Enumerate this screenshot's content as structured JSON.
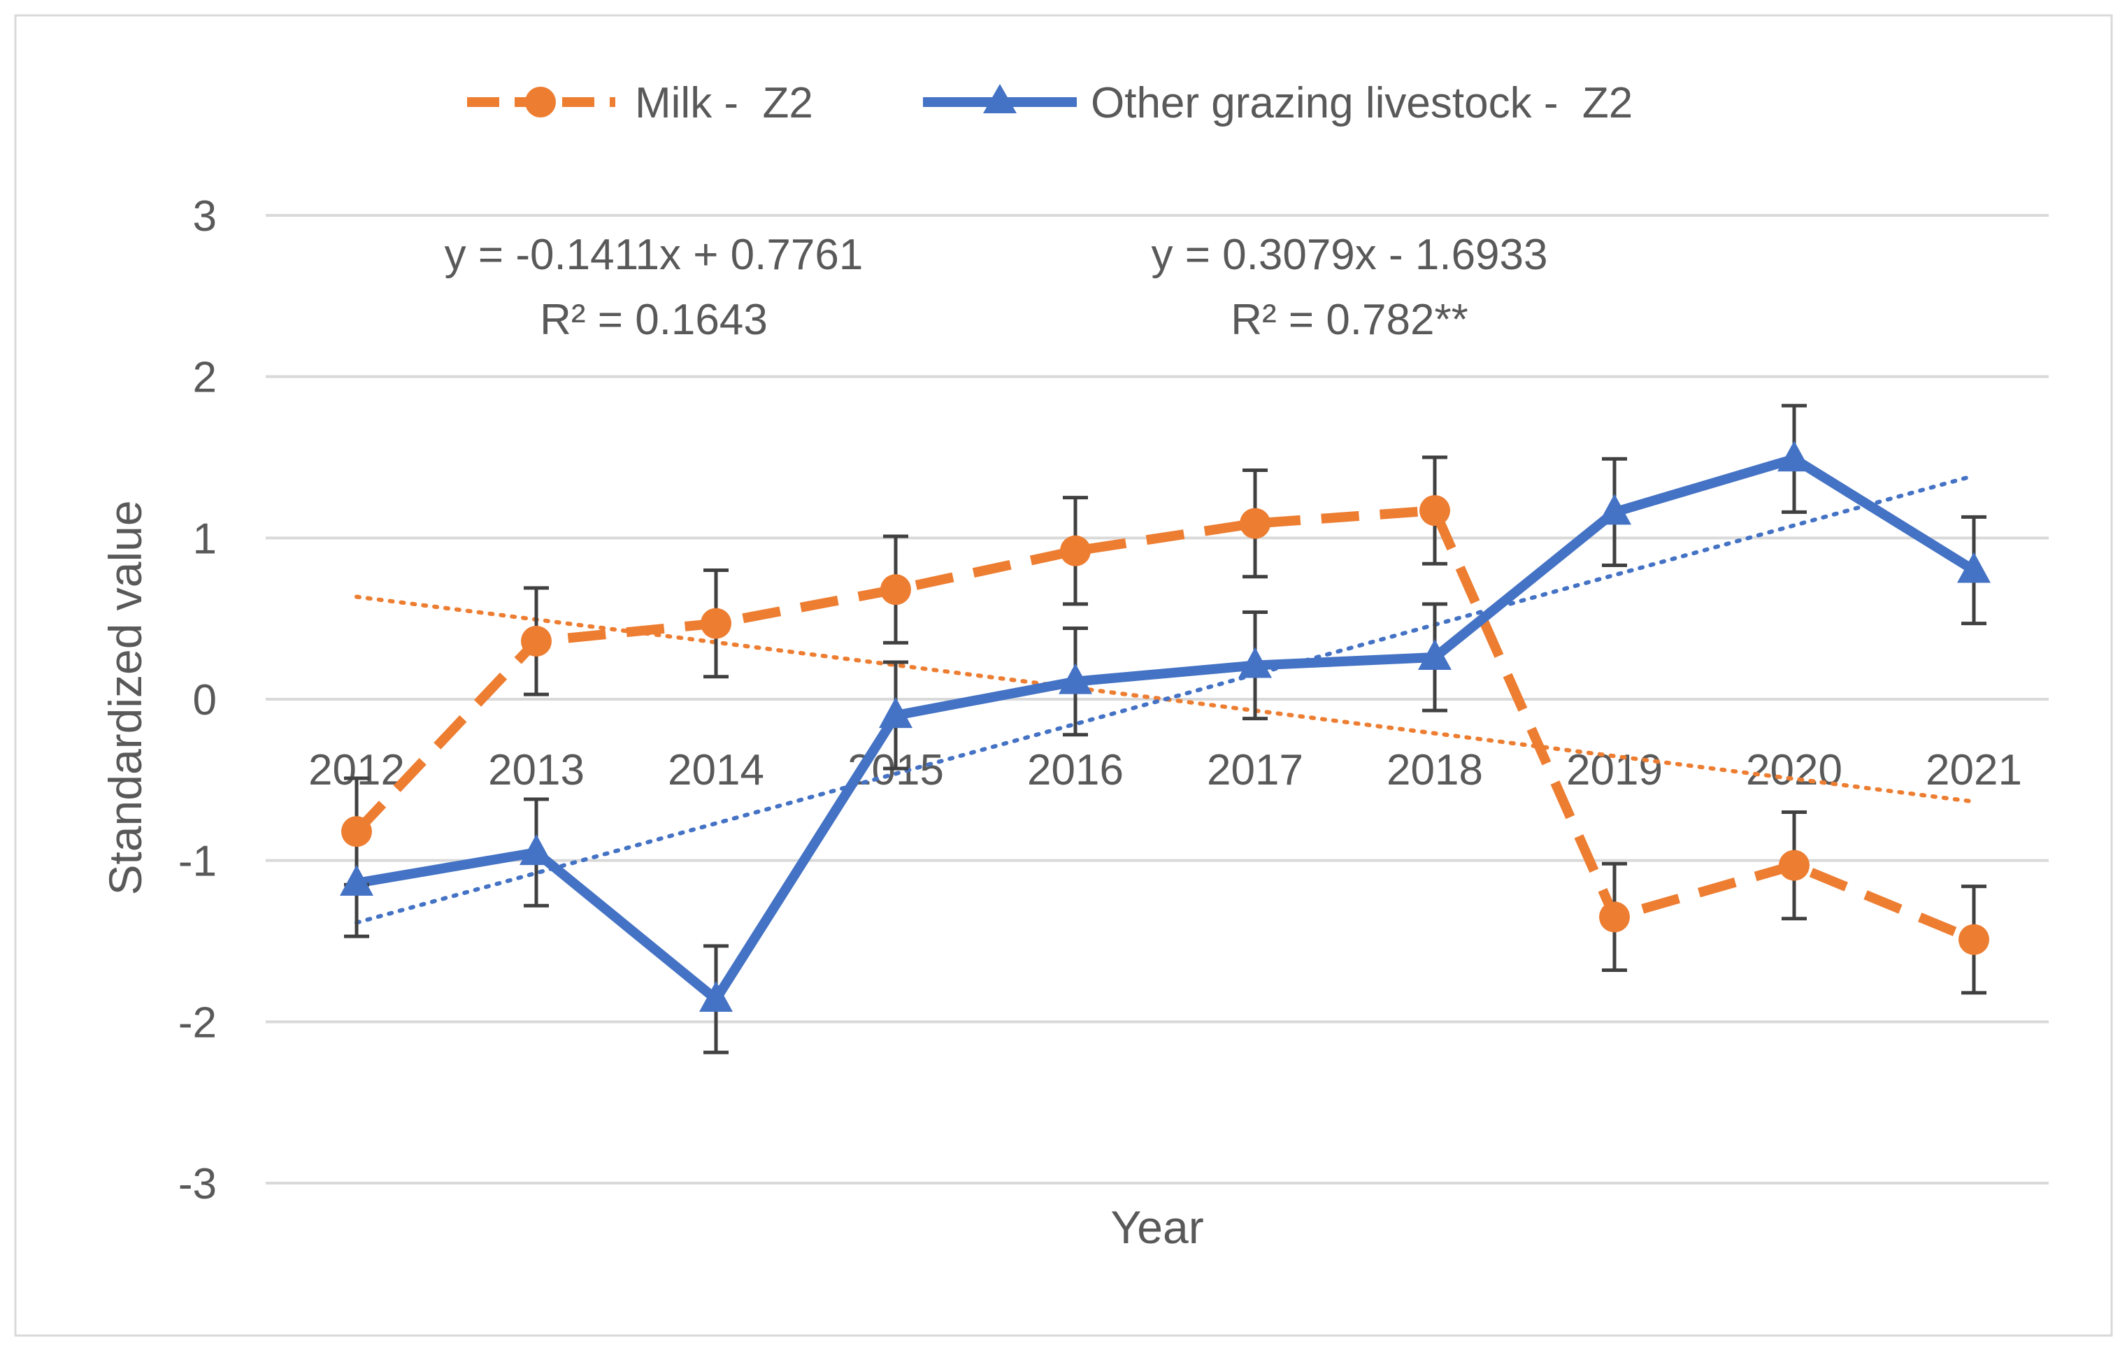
{
  "chart_data": {
    "type": "line",
    "title": "",
    "xlabel": "Year",
    "ylabel": "Standardized value",
    "ylim": [
      -3,
      3
    ],
    "yticks": [
      3,
      2,
      1,
      0,
      -1,
      -2,
      -3
    ],
    "grid": true,
    "legend_position": "top",
    "categories": [
      "2012",
      "2013",
      "2014",
      "2015",
      "2016",
      "2017",
      "2018",
      "2019",
      "2020",
      "2021"
    ],
    "series": [
      {
        "name": "Milk -  Z2",
        "color": "#ED7D31",
        "marker": "circle",
        "line_style": "dashed",
        "values": [
          -0.82,
          0.36,
          0.47,
          0.68,
          0.92,
          1.09,
          1.17,
          -1.35,
          -1.03,
          -1.49
        ],
        "error": 0.33,
        "trendline": {
          "slope": -0.1411,
          "intercept": 0.7761,
          "equation": "y = -0.1411x + 0.7761",
          "r2_label": "R² = 0.1643"
        }
      },
      {
        "name": "Other grazing livestock -  Z2",
        "color": "#4472C4",
        "marker": "triangle",
        "line_style": "solid",
        "values": [
          -1.14,
          -0.95,
          -1.86,
          -0.1,
          0.11,
          0.21,
          0.26,
          1.16,
          1.49,
          0.8
        ],
        "error": 0.33,
        "trendline": {
          "slope": 0.3079,
          "intercept": -1.6933,
          "equation": "y = 0.3079x - 1.6933",
          "r2_label": "R² = 0.782**"
        }
      }
    ]
  }
}
